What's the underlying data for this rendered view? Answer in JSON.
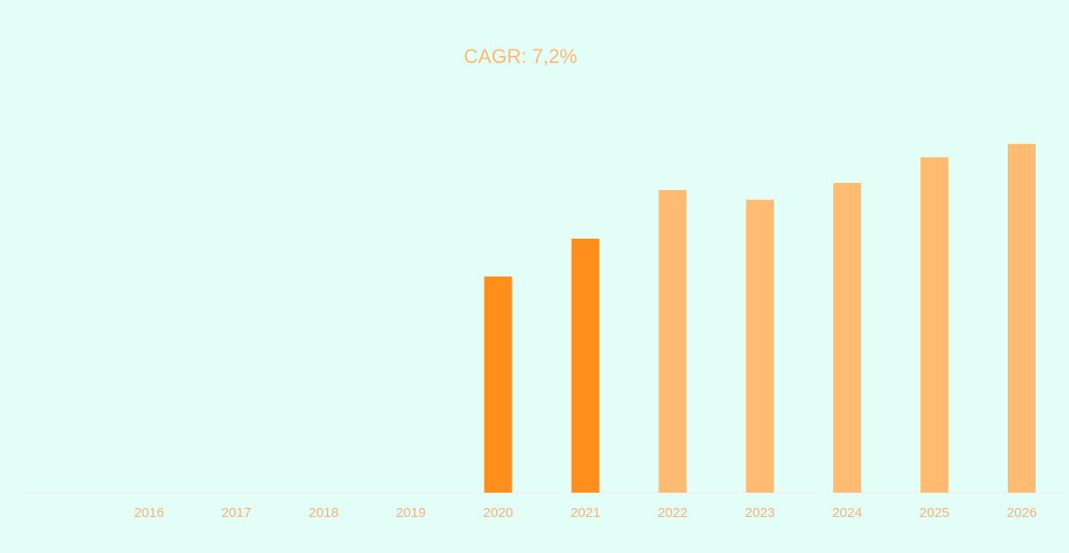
{
  "chart_data": {
    "type": "bar",
    "title": "CAGR: 7,2%",
    "xlabel": "",
    "ylabel": "",
    "categories": [
      "2016",
      "2017",
      "2018",
      "2019",
      "2020",
      "2021",
      "2022",
      "2023",
      "2024",
      "2025",
      "2026"
    ],
    "values": [
      null,
      null,
      null,
      null,
      60.0,
      70.5,
      84.0,
      81.3,
      86.0,
      93.1,
      96.8
    ],
    "ylim": [
      0,
      100
    ],
    "grid": false,
    "legend": "none",
    "colors": {
      "historical": "#ff8f1a",
      "forecast": "#ffbb72",
      "title": "#ffb870",
      "tick_label": "#f6b27a",
      "baseline": "#f3ece4",
      "background": "#e3fdf7"
    },
    "bar_color_by_category": [
      "historical",
      "historical",
      "historical",
      "historical",
      "historical",
      "historical",
      "forecast",
      "forecast",
      "forecast",
      "forecast",
      "forecast"
    ]
  }
}
